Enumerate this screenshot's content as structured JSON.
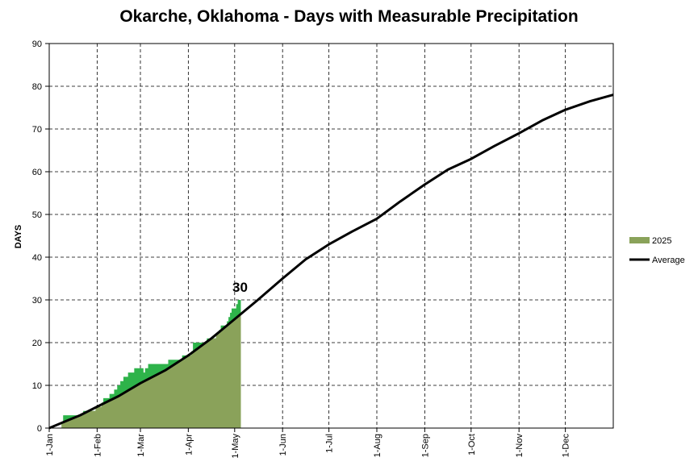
{
  "chart_data": {
    "type": "area",
    "title": "Okarche, Oklahoma - Days with Measurable Precipitation",
    "xlabel": "",
    "ylabel": "DAYS",
    "ylim": [
      0,
      90
    ],
    "yticks": [
      0,
      10,
      20,
      30,
      40,
      50,
      60,
      70,
      80,
      90
    ],
    "xlim_days": [
      0,
      365
    ],
    "xticks": [
      {
        "day": 0,
        "label": "1-Jan"
      },
      {
        "day": 31,
        "label": "1-Feb"
      },
      {
        "day": 59,
        "label": "1-Mar"
      },
      {
        "day": 90,
        "label": "1-Apr"
      },
      {
        "day": 120,
        "label": "1-May"
      },
      {
        "day": 151,
        "label": "1-Jun"
      },
      {
        "day": 181,
        "label": "1-Jul"
      },
      {
        "day": 212,
        "label": "1-Aug"
      },
      {
        "day": 243,
        "label": "1-Sep"
      },
      {
        "day": 273,
        "label": "1-Oct"
      },
      {
        "day": 304,
        "label": "1-Nov"
      },
      {
        "day": 334,
        "label": "1-Dec"
      }
    ],
    "grid": true,
    "legend_position": "right",
    "series": [
      {
        "name": "2025",
        "color": "#8aa25a",
        "above_average_color": "#2eb34a",
        "step_points": [
          [
            0,
            0
          ],
          [
            8,
            1
          ],
          [
            9,
            3
          ],
          [
            18,
            3
          ],
          [
            22,
            4
          ],
          [
            26,
            4
          ],
          [
            30,
            5
          ],
          [
            34,
            6
          ],
          [
            35,
            7
          ],
          [
            39,
            8
          ],
          [
            42,
            9
          ],
          [
            44,
            10
          ],
          [
            46,
            11
          ],
          [
            48,
            12
          ],
          [
            51,
            13
          ],
          [
            55,
            14
          ],
          [
            59,
            14
          ],
          [
            61,
            13
          ],
          [
            62,
            14
          ],
          [
            64,
            15
          ],
          [
            75,
            15
          ],
          [
            77,
            16
          ],
          [
            85,
            16
          ],
          [
            86,
            17
          ],
          [
            91,
            17
          ],
          [
            92,
            18
          ],
          [
            93,
            20
          ],
          [
            100,
            20
          ],
          [
            102,
            21
          ],
          [
            106,
            21
          ],
          [
            108,
            22
          ],
          [
            110,
            23
          ],
          [
            111,
            24
          ],
          [
            114,
            24
          ],
          [
            115,
            25
          ],
          [
            116,
            26
          ],
          [
            117,
            27
          ],
          [
            118,
            28
          ],
          [
            120,
            28
          ],
          [
            121,
            29
          ],
          [
            122,
            30
          ],
          [
            124,
            30
          ]
        ],
        "last_value": 30,
        "last_value_label": "30"
      },
      {
        "name": "Average",
        "color": "#000000",
        "points": [
          [
            0,
            0
          ],
          [
            10,
            1.5
          ],
          [
            20,
            3
          ],
          [
            31,
            5
          ],
          [
            45,
            7.5
          ],
          [
            59,
            10.5
          ],
          [
            75,
            13.5
          ],
          [
            90,
            17
          ],
          [
            105,
            21
          ],
          [
            120,
            25.5
          ],
          [
            135,
            30
          ],
          [
            151,
            35
          ],
          [
            166,
            39.5
          ],
          [
            181,
            43
          ],
          [
            196,
            46
          ],
          [
            212,
            49
          ],
          [
            227,
            53
          ],
          [
            243,
            57
          ],
          [
            258,
            60.5
          ],
          [
            273,
            63
          ],
          [
            288,
            66
          ],
          [
            304,
            69
          ],
          [
            319,
            72
          ],
          [
            334,
            74.5
          ],
          [
            350,
            76.5
          ],
          [
            365,
            78
          ]
        ]
      }
    ]
  }
}
